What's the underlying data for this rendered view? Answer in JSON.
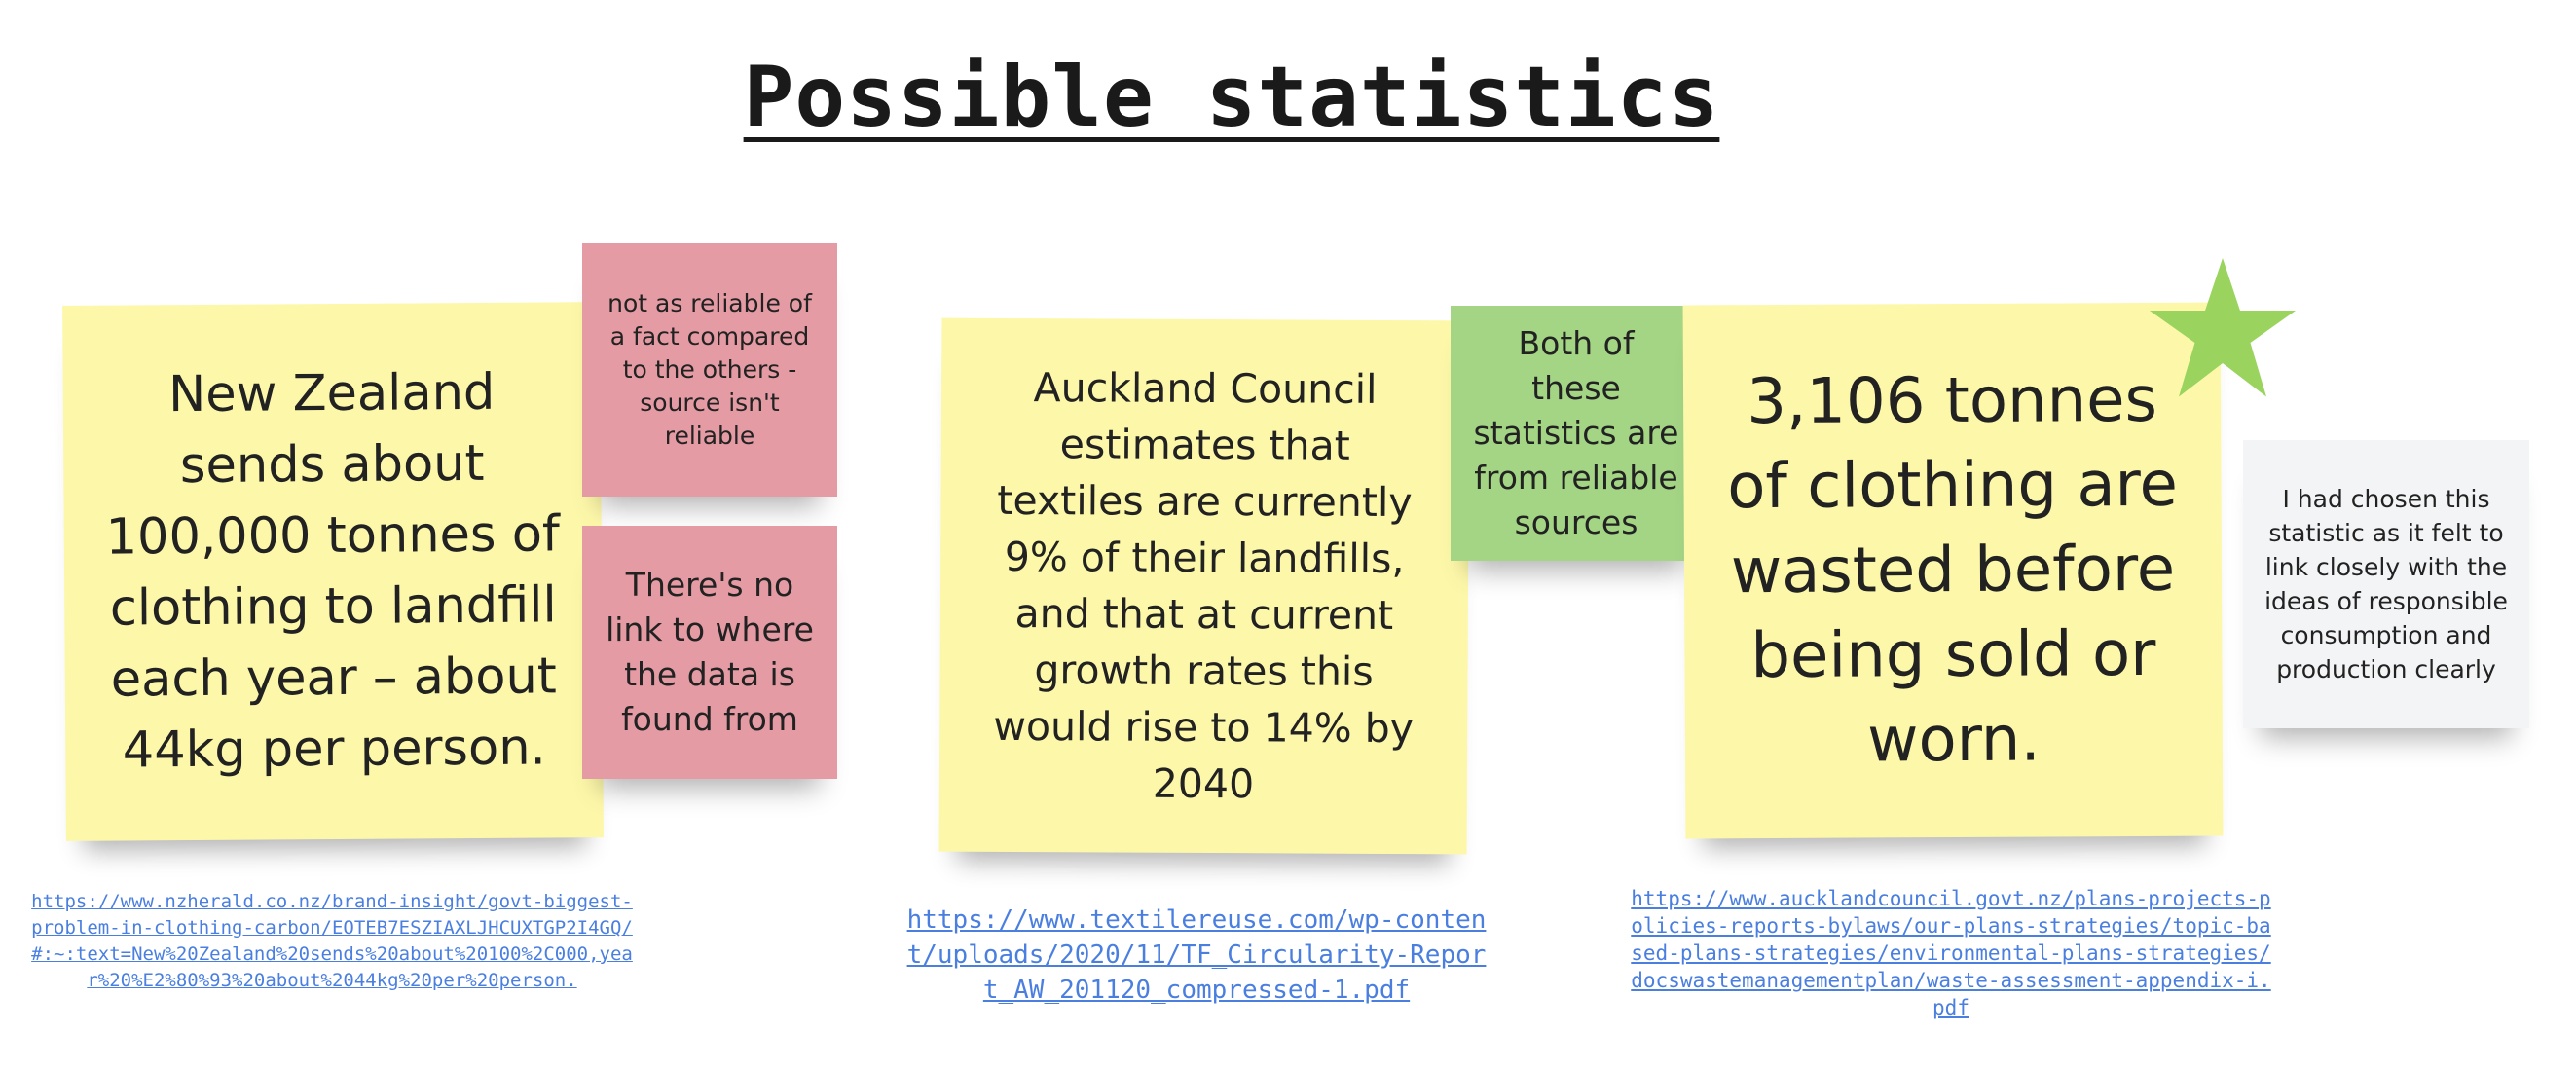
{
  "board": {
    "title": "Possible statistics"
  },
  "notes": {
    "nz_stat": "New Zealand sends about 100,000 tonnes of clothing to landfill each year – about 44kg per person.",
    "unreliable_fact": "not as reliable of a fact compared to the others - source isn't reliable",
    "no_link": "There's no link to where the data is found from",
    "auckland_stat": "Auckland Council estimates that textiles are currently 9% of their landfills, and that at current growth rates this would rise to 14% by 2040",
    "reliable_sources": "Both of these statistics are from reliable sources",
    "tonnes_stat": "3,106 tonnes of clothing are wasted before being sold or worn.",
    "chosen_reason": "I had chosen this statistic as it felt to link closely with the ideas of responsible consumption and production clearly"
  },
  "links": {
    "nzherald": "https://www.nzherald.co.nz/brand-insight/govt-biggest-problem-in-clothing-carbon/EOTEB7ESZIAXLJHCUXTGP2I4GQ/#:~:text=New%20Zealand%20sends%20about%20100%2C000,year%20%E2%80%93%20about%2044kg%20per%20person.",
    "textilereuse": "https://www.textilereuse.com/wp-content/uploads/2020/11/TF_Circularity-Report_AW_201120_compressed-1.pdf",
    "aucklandcouncil": "https://www.aucklandcouncil.govt.nz/plans-projects-policies-reports-bylaws/our-plans-strategies/topic-based-plans-strategies/environmental-plans-strategies/docswastemanagementplan/waste-assessment-appendix-i.pdf"
  },
  "icons": {
    "star": "star-icon"
  },
  "colors": {
    "yellow_note": "#fdf8a9",
    "pink_note": "#e59ba3",
    "green_note": "#a4d585",
    "grey_note": "#f3f4f6",
    "star": "#9ad45f",
    "link": "#4a7fe0"
  }
}
